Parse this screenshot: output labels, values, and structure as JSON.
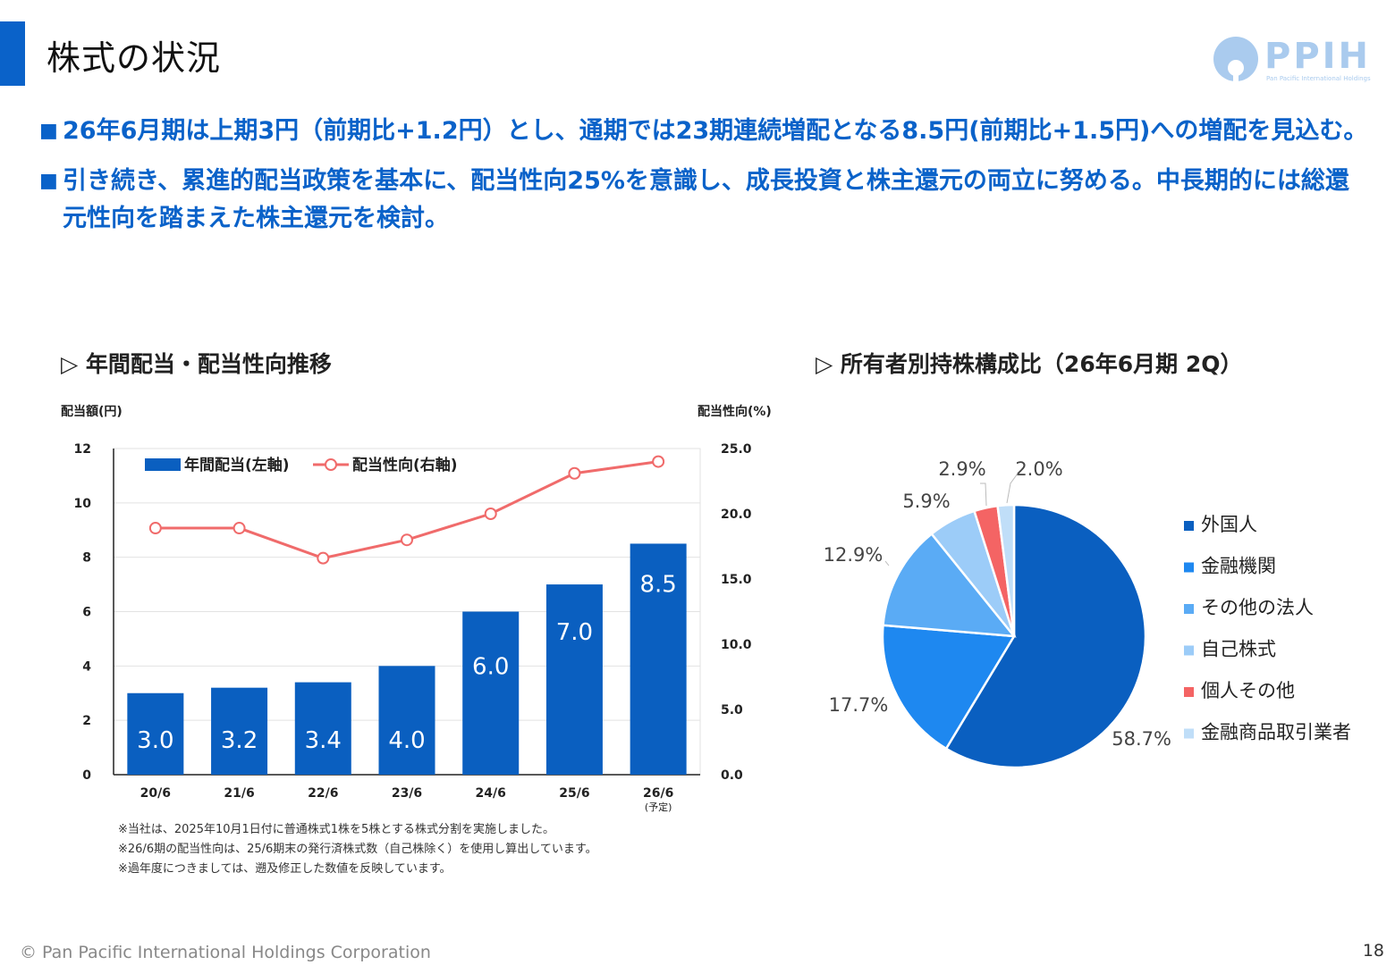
{
  "header": {
    "title": "株式の状況",
    "logo_text": "PPIH",
    "logo_sub": "Pan Pacific International Holdings"
  },
  "bullets": [
    {
      "mark": "■",
      "text": "26年6月期は上期3円（前期比+1.2円）とし、通期では23期連続増配となる8.5円(前期比+1.5円)への増配を見込む。"
    },
    {
      "mark": "■",
      "text": "引き続き、累進的配当政策を基本に、配当性向25%を意識し、成長投資と株主還元の両立に努める。中長期的には総還元性向を踏まえた株主還元を検討。"
    }
  ],
  "left_section_title": "▷ 年間配当・配当性向推移",
  "right_section_title": "▷ 所有者別持株構成比（26年6月期 2Q）",
  "chart_data": [
    {
      "type": "bar",
      "categories": [
        "20/6",
        "21/6",
        "22/6",
        "23/6",
        "24/6",
        "25/6",
        "26/6"
      ],
      "category_note": "(予定)",
      "series": [
        {
          "name": "年間配当(左軸)",
          "type": "bar",
          "axis": "left",
          "values": [
            3.0,
            3.2,
            3.4,
            4.0,
            6.0,
            7.0,
            8.5
          ],
          "color": "#0a5fc0"
        },
        {
          "name": "配当性向(右軸)",
          "type": "line",
          "axis": "right",
          "values": [
            18.9,
            18.9,
            16.6,
            18.0,
            20.0,
            23.1,
            24.0
          ],
          "color": "#f06b6b"
        }
      ],
      "left_axis": {
        "label": "配当額(円)",
        "range": [
          0,
          12
        ],
        "ticks": [
          "0",
          "2",
          "4",
          "6",
          "8",
          "10",
          "12"
        ]
      },
      "right_axis": {
        "label": "配当性向(%)",
        "range": [
          0,
          25
        ],
        "ticks": [
          "0.0",
          "5.0",
          "10.0",
          "15.0",
          "20.0",
          "25.0"
        ]
      },
      "data_labels": [
        "3.0",
        "3.2",
        "3.4",
        "4.0",
        "6.0",
        "7.0",
        "8.5"
      ],
      "legend_position": "top-left"
    },
    {
      "type": "pie",
      "labels": [
        "外国人",
        "金融機関",
        "その他の法人",
        "自己株式",
        "個人その他",
        "金融商品取引業者"
      ],
      "values": [
        58.7,
        17.7,
        12.9,
        5.9,
        2.9,
        2.0
      ],
      "value_labels": [
        "58.7%",
        "17.7%",
        "12.9%",
        "5.9%",
        "2.9%",
        "2.0%"
      ],
      "colors": [
        "#0a5fc0",
        "#1e88f0",
        "#5aabf5",
        "#9cccf8",
        "#f46464",
        "#c0def8"
      ],
      "legend_position": "right"
    }
  ],
  "footnotes": [
    "※当社は、2025年10月1日付に普通株式1株を5株とする株式分割を実施しました。",
    "※26/6期の配当性向は、25/6期末の発行済株式数（自己株除く）を使用し算出しています。",
    "※過年度につきましては、遡及修正した数値を反映しています。"
  ],
  "footer": {
    "copyright": "© Pan Pacific International Holdings Corporation",
    "page": "18"
  }
}
